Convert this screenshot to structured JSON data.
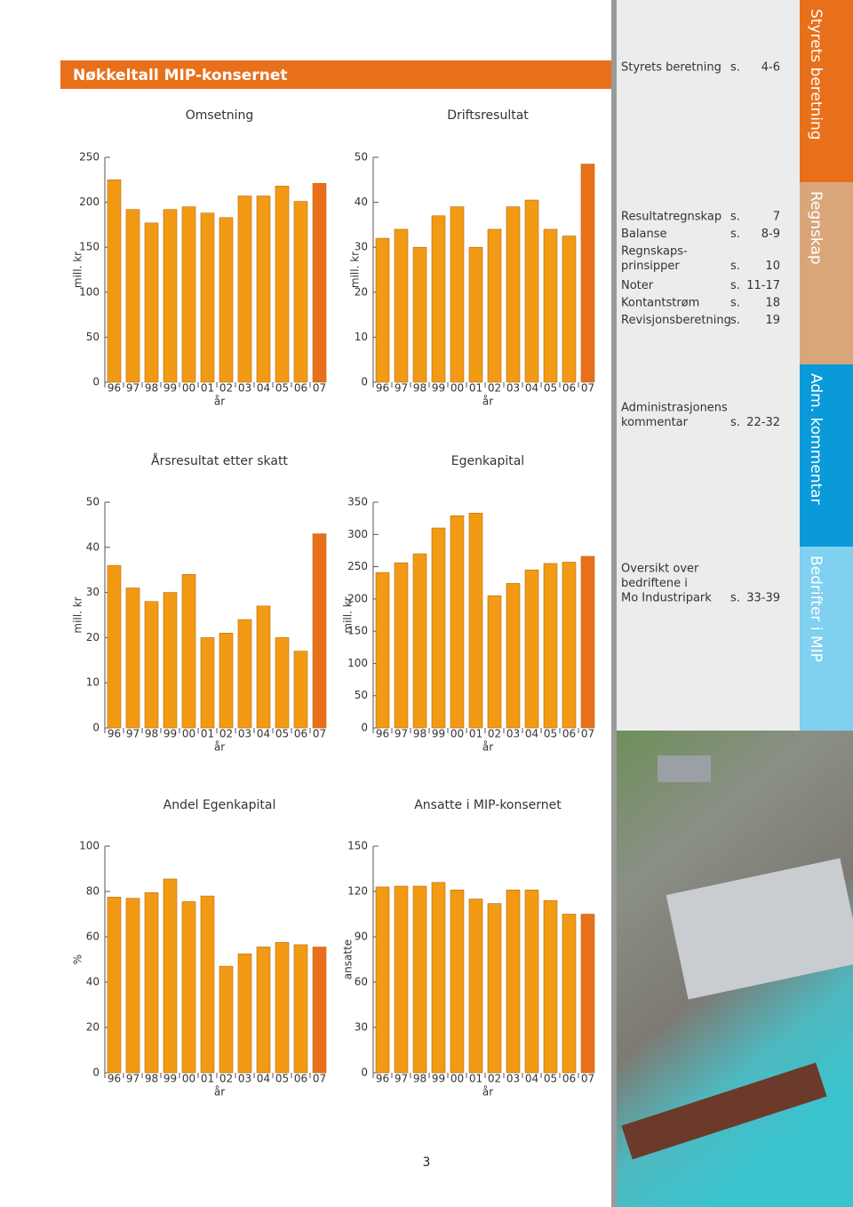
{
  "header": {
    "title": "Nøkkeltall MIP-konsernet"
  },
  "chart_data": [
    {
      "type": "bar",
      "title": "Omsetning",
      "y_label": "mill. kr",
      "x_label": "år",
      "categories": [
        "96",
        "97",
        "98",
        "99",
        "00",
        "01",
        "02",
        "03",
        "04",
        "05",
        "06",
        "07"
      ],
      "values": [
        225,
        192,
        177,
        192,
        195,
        188,
        183,
        207,
        207,
        218,
        201,
        221
      ],
      "ylim": [
        0,
        250
      ],
      "yticks": [
        0,
        50,
        100,
        150,
        200,
        250
      ],
      "color": "#f29a14",
      "last_color": "#e9701b"
    },
    {
      "type": "bar",
      "title": "Driftsresultat",
      "y_label": "mill. kr",
      "x_label": "år",
      "categories": [
        "96",
        "97",
        "98",
        "99",
        "00",
        "01",
        "02",
        "03",
        "04",
        "05",
        "06",
        "07"
      ],
      "values": [
        32,
        34,
        30,
        37,
        39,
        30,
        34,
        39,
        40.5,
        34,
        32.5,
        48.5
      ],
      "ylim": [
        0,
        50
      ],
      "yticks": [
        0,
        10,
        20,
        30,
        40,
        50
      ],
      "color": "#f29a14",
      "last_color": "#e9701b"
    },
    {
      "type": "bar",
      "title": "Årsresultat etter skatt",
      "y_label": "mill. kr",
      "x_label": "år",
      "categories": [
        "96",
        "97",
        "98",
        "99",
        "00",
        "01",
        "02",
        "03",
        "04",
        "05",
        "06",
        "07"
      ],
      "values": [
        36,
        31,
        28,
        30,
        34,
        20,
        21,
        24,
        27,
        20,
        17,
        43
      ],
      "ylim": [
        0,
        50
      ],
      "yticks": [
        0,
        10,
        20,
        30,
        40,
        50
      ],
      "color": "#f29a14",
      "last_color": "#e9701b"
    },
    {
      "type": "bar",
      "title": "Egenkapital",
      "y_label": "mill. kr",
      "x_label": "år",
      "categories": [
        "96",
        "97",
        "98",
        "99",
        "00",
        "01",
        "02",
        "03",
        "04",
        "05",
        "06",
        "07"
      ],
      "values": [
        241,
        256,
        270,
        310,
        329,
        333,
        205,
        224,
        245,
        255,
        257,
        266
      ],
      "ylim": [
        0,
        350
      ],
      "yticks": [
        0,
        50,
        100,
        150,
        200,
        250,
        300,
        350
      ],
      "color": "#f29a14",
      "last_color": "#e9701b"
    },
    {
      "type": "bar",
      "title": "Andel Egenkapital",
      "y_label": "%",
      "x_label": "år",
      "categories": [
        "96",
        "97",
        "98",
        "99",
        "00",
        "01",
        "02",
        "03",
        "04",
        "05",
        "06",
        "07"
      ],
      "values": [
        77.5,
        77,
        79.5,
        85.5,
        75.5,
        78,
        47,
        52.5,
        55.5,
        57.5,
        56.5,
        55.5
      ],
      "ylim": [
        0,
        100
      ],
      "yticks": [
        0,
        20,
        40,
        60,
        80,
        100
      ],
      "color": "#f29a14",
      "last_color": "#e9701b"
    },
    {
      "type": "bar",
      "title": "Ansatte i MIP-konsernet",
      "y_label": "ansatte",
      "x_label": "år",
      "categories": [
        "96",
        "97",
        "98",
        "99",
        "00",
        "01",
        "02",
        "03",
        "04",
        "05",
        "06",
        "07"
      ],
      "values": [
        123,
        123.5,
        123.5,
        126,
        121,
        115,
        112,
        121,
        121,
        114,
        105,
        105
      ],
      "ylim": [
        0,
        150
      ],
      "yticks": [
        0,
        30,
        60,
        90,
        120,
        150
      ],
      "color": "#f29a14",
      "last_color": "#e9701b"
    }
  ],
  "sidebar": [
    {
      "tab": "Styrets beretning",
      "tab_color": "#e9701b",
      "entries": [
        {
          "lines": [
            "Styrets beretning"
          ],
          "prefix": "s.",
          "page": "4-6"
        }
      ]
    },
    {
      "tab": "Regnskap",
      "tab_color": "#d9a67a",
      "entries": [
        {
          "lines": [
            "Resultatregnskap"
          ],
          "prefix": "s.",
          "page": "7"
        },
        {
          "lines": [
            "Balanse"
          ],
          "prefix": "s.",
          "page": "8-9"
        },
        {
          "lines": [
            "Regnskaps-",
            "prinsipper"
          ],
          "prefix": "s.",
          "page": "10"
        },
        {
          "lines": [
            "Noter"
          ],
          "prefix": "s.",
          "page": "11-17"
        },
        {
          "lines": [
            "Kontantstrøm"
          ],
          "prefix": "s.",
          "page": "18"
        },
        {
          "lines": [
            "Revisjonsberetning"
          ],
          "prefix": "s.",
          "page": "19"
        }
      ]
    },
    {
      "tab": "Adm. kommentar",
      "tab_color": "#0b9ad9",
      "entries": [
        {
          "lines": [
            "Administrasjonens",
            "kommentar"
          ],
          "prefix": "s.",
          "page": "22-32"
        }
      ]
    },
    {
      "tab": "Bedrifter i MIP",
      "tab_color": "#80d0f0",
      "entries": [
        {
          "lines": [
            "Oversikt over",
            "bedriftene i",
            "Mo Industripark"
          ],
          "prefix": "s.",
          "page": "33-39"
        }
      ]
    }
  ],
  "page_number": "3"
}
